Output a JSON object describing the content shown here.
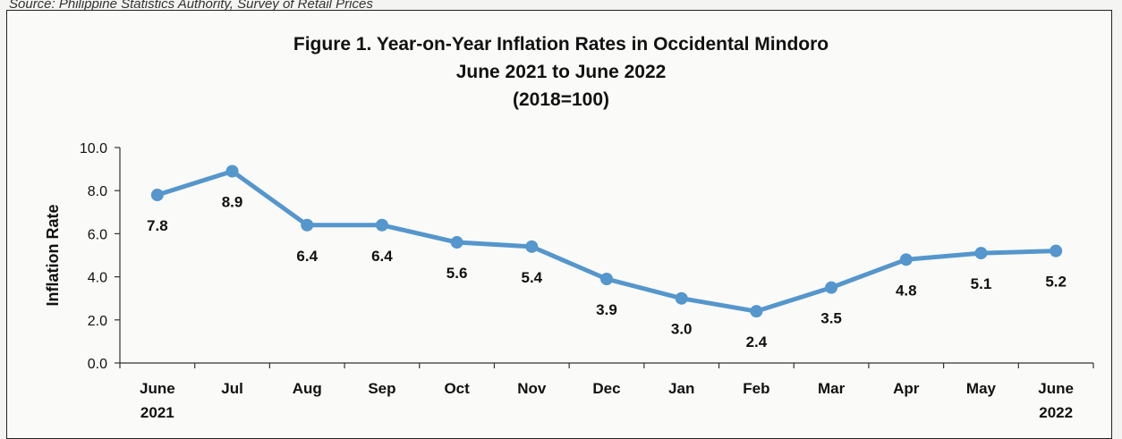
{
  "source_line": "Source: Philippine Statistics Authority, Survey of Retail Prices",
  "chart_data": {
    "type": "line",
    "title": "Figure 1. Year-on-Year Inflation Rates in Occidental Mindoro",
    "subtitle": "June 2021 to June 2022",
    "subtitle2": "(2018=100)",
    "xlabel": "",
    "ylabel": "Inflation Rate",
    "ylim": [
      0,
      10
    ],
    "yticks": [
      "0.0",
      "2.0",
      "4.0",
      "6.0",
      "8.0",
      "10.0"
    ],
    "categories": [
      [
        "June",
        "2021"
      ],
      [
        "Jul"
      ],
      [
        "Aug"
      ],
      [
        "Sep"
      ],
      [
        "Oct"
      ],
      [
        "Nov"
      ],
      [
        "Dec"
      ],
      [
        "Jan"
      ],
      [
        "Feb"
      ],
      [
        "Mar"
      ],
      [
        "Apr"
      ],
      [
        "May"
      ],
      [
        "June",
        "2022"
      ]
    ],
    "values": [
      7.8,
      8.9,
      6.4,
      6.4,
      5.6,
      5.4,
      3.9,
      3.0,
      2.4,
      3.5,
      4.8,
      5.1,
      5.2
    ],
    "data_labels": [
      "7.8",
      "8.9",
      "6.4",
      "6.4",
      "5.6",
      "5.4",
      "3.9",
      "3.0",
      "2.4",
      "3.5",
      "4.8",
      "5.1",
      "5.2"
    ],
    "line_color": "#5596cc",
    "grid": false,
    "legend": "none"
  }
}
